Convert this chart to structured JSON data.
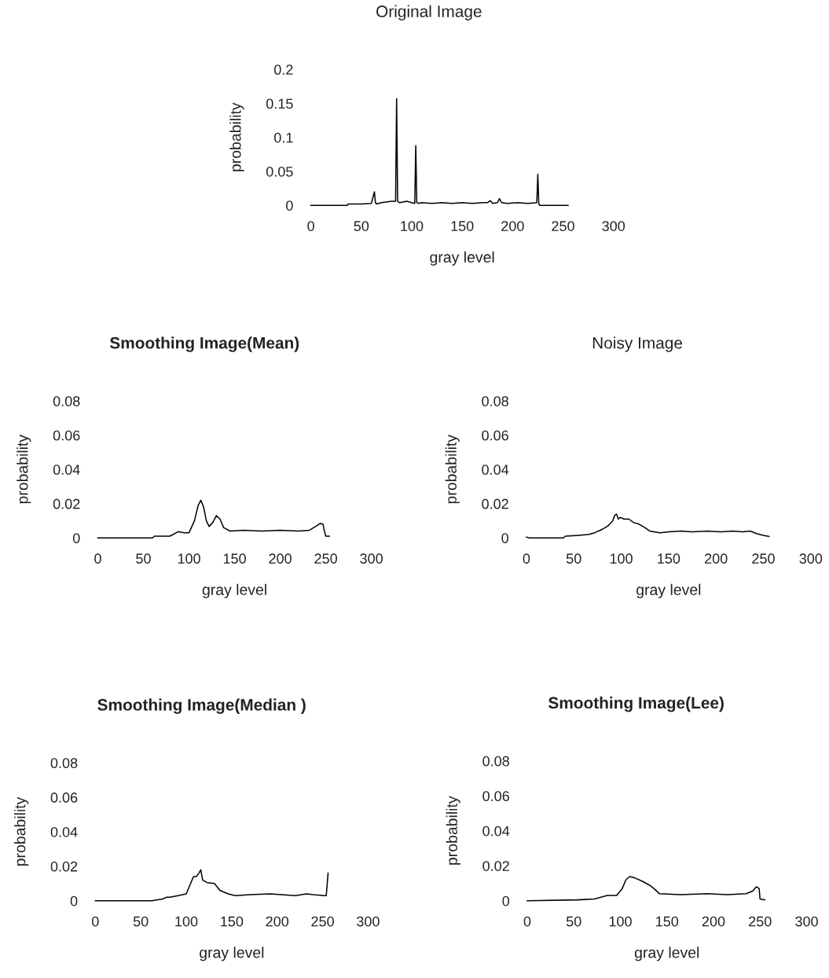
{
  "chart_data": [
    {
      "type": "line",
      "title": "Original Image",
      "xlabel": "gray level",
      "ylabel": "probability",
      "xlim": [
        0,
        300
      ],
      "xticks": [
        0,
        50,
        100,
        150,
        200,
        250,
        300
      ],
      "ylim": [
        0,
        0.2
      ],
      "yticks": [
        0,
        0.05,
        0.1,
        0.15,
        0.2
      ],
      "grid": false,
      "legend": false,
      "marker": "none",
      "line_style": "solid",
      "series": [
        {
          "color": "#000000",
          "x": [
            0,
            36,
            37,
            50,
            60,
            63,
            64,
            65,
            70,
            80,
            84,
            85,
            86,
            88,
            95,
            100,
            103,
            104,
            105,
            107,
            110,
            120,
            130,
            140,
            150,
            160,
            170,
            175,
            178,
            180,
            185,
            187,
            189,
            195,
            205,
            215,
            224,
            225,
            226,
            227,
            240,
            255
          ],
          "values": [
            0,
            0,
            0.002,
            0.002,
            0.003,
            0.02,
            0.004,
            0.002,
            0.004,
            0.006,
            0.006,
            0.157,
            0.006,
            0.004,
            0.006,
            0.004,
            0.003,
            0.088,
            0.004,
            0.003,
            0.004,
            0.003,
            0.004,
            0.003,
            0.004,
            0.003,
            0.004,
            0.004,
            0.007,
            0.003,
            0.004,
            0.01,
            0.004,
            0.003,
            0.004,
            0.003,
            0.004,
            0.046,
            0.002,
            0,
            0,
            0
          ]
        }
      ]
    },
    {
      "type": "line",
      "title": "Smoothing Image(Mean)",
      "xlabel": "gray level",
      "ylabel": "probability",
      "xlim": [
        0,
        300
      ],
      "xticks": [
        0,
        50,
        100,
        150,
        200,
        250,
        300
      ],
      "ylim": [
        0,
        0.08
      ],
      "yticks": [
        0,
        0.02,
        0.04,
        0.06,
        0.08
      ],
      "grid": false,
      "legend": false,
      "marker": "none",
      "line_style": "solid",
      "series": [
        {
          "color": "#000000",
          "x": [
            0,
            60,
            62,
            79,
            88,
            95,
            100,
            106,
            110,
            113,
            116,
            119,
            122,
            126,
            130,
            134,
            138,
            145,
            160,
            180,
            200,
            220,
            232,
            240,
            244,
            247,
            248,
            250,
            254
          ],
          "values": [
            0,
            0,
            0.001,
            0.001,
            0.0036,
            0.003,
            0.003,
            0.01,
            0.019,
            0.022,
            0.018,
            0.01,
            0.0067,
            0.009,
            0.013,
            0.011,
            0.006,
            0.004,
            0.0045,
            0.004,
            0.0045,
            0.004,
            0.0045,
            0.007,
            0.0085,
            0.008,
            0.005,
            0.001,
            0.001
          ]
        }
      ]
    },
    {
      "type": "line",
      "title": "Noisy Image",
      "xlabel": "gray level",
      "ylabel": "probability",
      "xlim": [
        0,
        300
      ],
      "xticks": [
        0,
        50,
        100,
        150,
        200,
        250,
        300
      ],
      "ylim": [
        0,
        0.08
      ],
      "yticks": [
        0,
        0.02,
        0.04,
        0.06,
        0.08
      ],
      "grid": false,
      "legend": false,
      "marker": "none",
      "line_style": "solid",
      "series": [
        {
          "color": "#000000",
          "x": [
            0,
            3,
            39,
            41,
            55,
            66,
            72,
            80,
            86,
            91,
            93,
            95,
            97,
            99,
            103,
            108,
            113,
            119,
            125,
            130,
            141,
            150,
            163,
            175,
            191,
            205,
            218,
            228,
            236,
            243,
            250,
            256
          ],
          "values": [
            0.0005,
            0,
            0,
            0.001,
            0.0015,
            0.002,
            0.003,
            0.005,
            0.007,
            0.01,
            0.013,
            0.014,
            0.011,
            0.012,
            0.011,
            0.011,
            0.009,
            0.008,
            0.006,
            0.004,
            0.003,
            0.0035,
            0.004,
            0.0035,
            0.004,
            0.0035,
            0.004,
            0.0035,
            0.004,
            0.0025,
            0.0015,
            0.0008
          ]
        }
      ]
    },
    {
      "type": "line",
      "title": "Smoothing Image(Median )",
      "xlabel": "gray level",
      "ylabel": "probability",
      "xlim": [
        0,
        300
      ],
      "xticks": [
        0,
        50,
        100,
        150,
        200,
        250,
        300
      ],
      "ylim": [
        0,
        0.08
      ],
      "yticks": [
        0,
        0.02,
        0.04,
        0.06,
        0.08
      ],
      "grid": false,
      "legend": false,
      "marker": "none",
      "line_style": "solid",
      "series": [
        {
          "color": "#000000",
          "x": [
            0,
            62,
            74,
            78,
            82,
            91,
            100,
            104,
            108,
            111,
            114,
            116,
            118,
            123,
            131,
            137,
            146,
            154,
            170,
            192,
            205,
            220,
            232,
            240,
            252,
            254,
            256
          ],
          "values": [
            0,
            0,
            0.001,
            0.002,
            0.002,
            0.003,
            0.004,
            0.009,
            0.014,
            0.014,
            0.016,
            0.018,
            0.012,
            0.0105,
            0.01,
            0.006,
            0.004,
            0.003,
            0.0035,
            0.004,
            0.0035,
            0.003,
            0.004,
            0.0035,
            0.003,
            0.003,
            0.016
          ]
        }
      ]
    },
    {
      "type": "line",
      "title": "Smoothing Image(Lee)",
      "xlabel": "gray level",
      "ylabel": "probability",
      "xlim": [
        0,
        300
      ],
      "xticks": [
        0,
        50,
        100,
        150,
        200,
        250,
        300
      ],
      "ylim": [
        0,
        0.08
      ],
      "yticks": [
        0,
        0.02,
        0.04,
        0.06,
        0.08
      ],
      "grid": false,
      "legend": false,
      "marker": "none",
      "line_style": "solid",
      "series": [
        {
          "color": "#000000",
          "x": [
            0,
            54,
            72,
            86,
            96,
            102,
            106,
            110,
            116,
            124,
            131,
            136,
            142,
            165,
            193,
            215,
            235,
            242,
            246,
            249,
            250,
            255
          ],
          "values": [
            0,
            0.0005,
            0.001,
            0.003,
            0.003,
            0.007,
            0.012,
            0.0138,
            0.013,
            0.011,
            0.009,
            0.007,
            0.004,
            0.0035,
            0.004,
            0.0035,
            0.004,
            0.0055,
            0.008,
            0.007,
            0.001,
            0.0005
          ]
        }
      ]
    }
  ]
}
